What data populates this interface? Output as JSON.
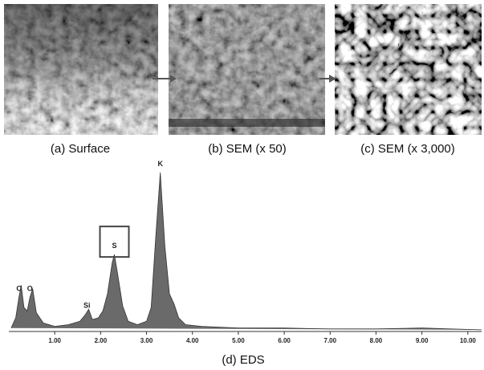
{
  "panels": [
    {
      "caption": "(a) Surface"
    },
    {
      "caption": "(b) SEM (x 50)"
    },
    {
      "caption": "(c) SEM (x 3,000)"
    }
  ],
  "chart_data": {
    "type": "line",
    "caption": "(d) EDS",
    "color": "#6a6a6a",
    "x": [
      0.05,
      0.15,
      0.22,
      0.27,
      0.33,
      0.4,
      0.46,
      0.52,
      0.6,
      0.75,
      1.0,
      1.3,
      1.55,
      1.67,
      1.74,
      1.82,
      1.95,
      2.05,
      2.15,
      2.25,
      2.3,
      2.38,
      2.48,
      2.6,
      2.8,
      3.0,
      3.1,
      3.2,
      3.3,
      3.4,
      3.5,
      3.6,
      3.7,
      3.85,
      4.2,
      5.0,
      6.0,
      7.0,
      8.0,
      9.0,
      9.6,
      10.3
    ],
    "values": [
      2,
      8,
      20,
      27,
      14,
      12,
      20,
      25,
      11,
      5,
      3,
      4,
      6,
      10,
      13,
      7,
      8,
      12,
      22,
      40,
      45,
      32,
      15,
      6,
      4,
      6,
      14,
      55,
      93,
      50,
      22,
      16,
      8,
      4,
      3,
      2,
      2,
      1.5,
      1.5,
      2,
      1.5,
      1
    ],
    "xlim": [
      0,
      10.3
    ],
    "ylim": [
      0,
      100
    ],
    "xticks": [
      {
        "value": 1,
        "label": "1.00"
      },
      {
        "value": 2,
        "label": "2.00"
      },
      {
        "value": 3,
        "label": "3.00"
      },
      {
        "value": 4,
        "label": "4.00"
      },
      {
        "value": 5,
        "label": "5.00"
      },
      {
        "value": 6,
        "label": "6.00"
      },
      {
        "value": 7,
        "label": "7.00"
      },
      {
        "value": 8,
        "label": "8.00"
      },
      {
        "value": 9,
        "label": "9.00"
      },
      {
        "value": 10,
        "label": "10.00"
      }
    ],
    "annotations": [
      {
        "text": "C",
        "x": 0.22
      },
      {
        "text": "O",
        "x": 0.46
      },
      {
        "text": "Si",
        "x": 1.7
      },
      {
        "text": "S",
        "x": 2.3
      },
      {
        "text": "K",
        "x": 3.3
      }
    ]
  }
}
